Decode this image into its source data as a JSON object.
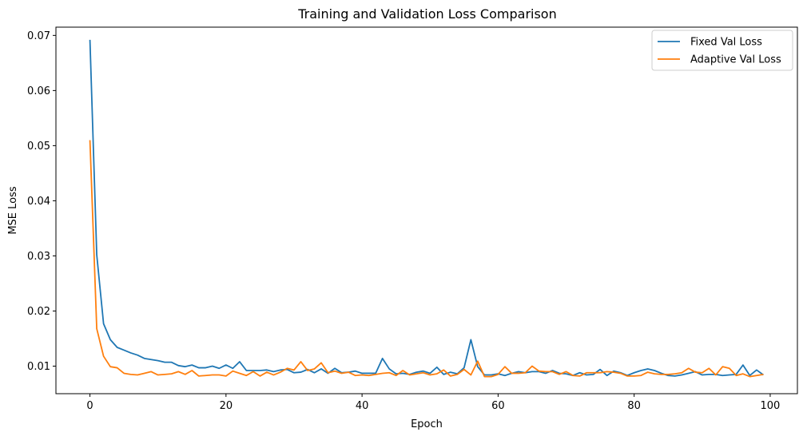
{
  "chart_data": {
    "type": "line",
    "title": "Training and Validation Loss Comparison",
    "xlabel": "Epoch",
    "ylabel": "MSE Loss",
    "xlim": [
      -5,
      104
    ],
    "ylim": [
      0.005,
      0.0715
    ],
    "xticks": [
      0,
      20,
      40,
      60,
      80,
      100
    ],
    "xtick_labels": [
      "0",
      "20",
      "40",
      "60",
      "80",
      "100"
    ],
    "yticks": [
      0.01,
      0.02,
      0.03,
      0.04,
      0.05,
      0.06,
      0.07
    ],
    "ytick_labels": [
      "0.01",
      "0.02",
      "0.03",
      "0.04",
      "0.05",
      "0.06",
      "0.07"
    ],
    "grid": false,
    "legend": "top-right",
    "series": [
      {
        "name": "Fixed Val Loss",
        "color": "#1f77b4",
        "values": [
          0.0692,
          0.0302,
          0.0177,
          0.0148,
          0.0134,
          0.0129,
          0.0124,
          0.012,
          0.0114,
          0.0112,
          0.011,
          0.0107,
          0.0107,
          0.0101,
          0.0099,
          0.0102,
          0.0097,
          0.0097,
          0.01,
          0.0096,
          0.0102,
          0.0096,
          0.0108,
          0.0092,
          0.0092,
          0.0092,
          0.0093,
          0.009,
          0.0093,
          0.0094,
          0.0088,
          0.0089,
          0.0094,
          0.0088,
          0.0095,
          0.0087,
          0.0096,
          0.0088,
          0.0089,
          0.0091,
          0.0087,
          0.0087,
          0.0087,
          0.0114,
          0.0095,
          0.0086,
          0.0087,
          0.0085,
          0.0089,
          0.0091,
          0.0087,
          0.0098,
          0.0085,
          0.0089,
          0.0086,
          0.0097,
          0.0148,
          0.0099,
          0.0084,
          0.0084,
          0.0086,
          0.0083,
          0.0087,
          0.009,
          0.0088,
          0.009,
          0.009,
          0.0087,
          0.0092,
          0.0087,
          0.0086,
          0.0083,
          0.0088,
          0.0084,
          0.0085,
          0.0094,
          0.0083,
          0.0091,
          0.0088,
          0.0083,
          0.0088,
          0.0092,
          0.0095,
          0.0092,
          0.0087,
          0.0083,
          0.0082,
          0.0084,
          0.0087,
          0.009,
          0.0084,
          0.0085,
          0.0085,
          0.0083,
          0.0084,
          0.0085,
          0.0102,
          0.0083,
          0.0093,
          0.0084
        ]
      },
      {
        "name": "Adaptive Val Loss",
        "color": "#ff7f0e",
        "values": [
          0.051,
          0.0168,
          0.0118,
          0.0099,
          0.0097,
          0.0087,
          0.0085,
          0.0084,
          0.0087,
          0.009,
          0.0084,
          0.0085,
          0.0086,
          0.009,
          0.0085,
          0.0092,
          0.0082,
          0.0083,
          0.0084,
          0.0084,
          0.0082,
          0.0091,
          0.0087,
          0.0083,
          0.009,
          0.0082,
          0.0089,
          0.0084,
          0.0089,
          0.0096,
          0.0093,
          0.0108,
          0.0092,
          0.0095,
          0.0106,
          0.0088,
          0.0091,
          0.0087,
          0.0089,
          0.0083,
          0.0084,
          0.0083,
          0.0085,
          0.0087,
          0.0088,
          0.0083,
          0.0092,
          0.0084,
          0.0086,
          0.0088,
          0.0084,
          0.0086,
          0.0093,
          0.0082,
          0.0085,
          0.0094,
          0.0084,
          0.0109,
          0.0081,
          0.0081,
          0.0085,
          0.0099,
          0.0087,
          0.0087,
          0.0088,
          0.01,
          0.0091,
          0.009,
          0.009,
          0.0085,
          0.009,
          0.0083,
          0.0082,
          0.0088,
          0.0088,
          0.0088,
          0.009,
          0.0089,
          0.0087,
          0.0082,
          0.0082,
          0.0083,
          0.0089,
          0.0086,
          0.0085,
          0.0085,
          0.0086,
          0.0088,
          0.0096,
          0.0089,
          0.0088,
          0.0096,
          0.0084,
          0.0099,
          0.0096,
          0.0083,
          0.0086,
          0.0081,
          0.0083,
          0.0085
        ]
      }
    ]
  }
}
